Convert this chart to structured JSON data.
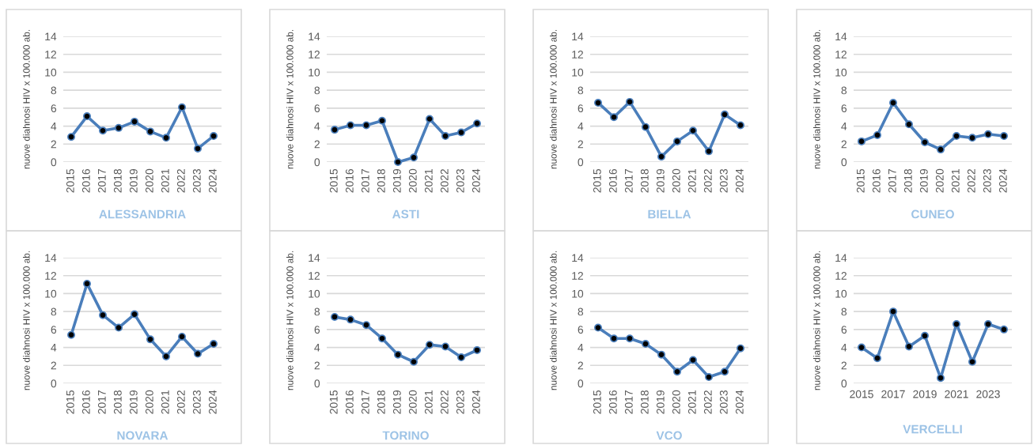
{
  "chart_data": [
    {
      "type": "line",
      "title": "ALESSANDRIA",
      "ylabel": "nuove diahnosi HIV x 100.000 ab.",
      "categories": [
        "2015",
        "2016",
        "2017",
        "2018",
        "2019",
        "2020",
        "2021",
        "2022",
        "2023",
        "2024"
      ],
      "series": [
        {
          "color": "#4a7ebb",
          "values": [
            2.8,
            5.1,
            3.5,
            3.8,
            4.5,
            3.4,
            2.7,
            6.1,
            1.5,
            2.9
          ]
        }
      ],
      "ylim": [
        0,
        14
      ],
      "yticks": [
        0,
        2,
        4,
        6,
        8,
        10,
        12,
        14
      ],
      "grid": "y",
      "marker": "circle",
      "legend": false
    },
    {
      "type": "line",
      "title": "ASTI",
      "ylabel": "nuove diahnosi HIV x 100.000 ab.",
      "categories": [
        "2015",
        "2016",
        "2017",
        "2018",
        "2019",
        "2020",
        "2021",
        "2022",
        "2023",
        "2024"
      ],
      "series": [
        {
          "color": "#4a7ebb",
          "values": [
            3.6,
            4.1,
            4.1,
            4.6,
            0.0,
            0.5,
            4.8,
            2.9,
            3.3,
            4.3
          ]
        }
      ],
      "ylim": [
        0,
        14
      ],
      "yticks": [
        0,
        2,
        4,
        6,
        8,
        10,
        12,
        14
      ],
      "grid": "y",
      "marker": "circle",
      "legend": false
    },
    {
      "type": "line",
      "title": "BIELLA",
      "ylabel": "nuove diahnosi HIV x 100.000 ab.",
      "categories": [
        "2015",
        "2016",
        "2017",
        "2018",
        "2019",
        "2020",
        "2021",
        "2022",
        "2023",
        "2024"
      ],
      "series": [
        {
          "color": "#4a7ebb",
          "values": [
            6.6,
            5.0,
            6.7,
            3.9,
            0.6,
            2.3,
            3.5,
            1.2,
            5.3,
            4.1
          ]
        }
      ],
      "ylim": [
        0,
        14
      ],
      "yticks": [
        0,
        2,
        4,
        6,
        8,
        10,
        12,
        14
      ],
      "grid": "y",
      "marker": "circle",
      "legend": false
    },
    {
      "type": "line",
      "title": "CUNEO",
      "ylabel": "nuove diahnosi HIV x 100.000 ab.",
      "categories": [
        "2015",
        "2016",
        "2017",
        "2018",
        "2019",
        "2020",
        "2021",
        "2022",
        "2023",
        "2024"
      ],
      "series": [
        {
          "color": "#4a7ebb",
          "values": [
            2.3,
            3.0,
            6.6,
            4.2,
            2.2,
            1.4,
            2.9,
            2.7,
            3.1,
            2.9
          ]
        }
      ],
      "ylim": [
        0,
        14
      ],
      "yticks": [
        0,
        2,
        4,
        6,
        8,
        10,
        12,
        14
      ],
      "grid": "y",
      "marker": "circle",
      "legend": false
    },
    {
      "type": "line",
      "title": "NOVARA",
      "ylabel": "nuove diahnosi HIV x 100.000 ab.",
      "categories": [
        "2015",
        "2016",
        "2017",
        "2018",
        "2019",
        "2020",
        "2021",
        "2022",
        "2023",
        "2024"
      ],
      "series": [
        {
          "color": "#4a7ebb",
          "values": [
            5.4,
            11.1,
            7.6,
            6.2,
            7.7,
            4.9,
            3.0,
            5.2,
            3.3,
            4.4
          ]
        }
      ],
      "ylim": [
        0,
        14
      ],
      "yticks": [
        0,
        2,
        4,
        6,
        8,
        10,
        12,
        14
      ],
      "grid": "y",
      "marker": "circle",
      "legend": false
    },
    {
      "type": "line",
      "title": "TORINO",
      "ylabel": "nuove diahnosi HIV x 100.000 ab.",
      "categories": [
        "2015",
        "2016",
        "2017",
        "2018",
        "2019",
        "2020",
        "2021",
        "2022",
        "2023",
        "2024"
      ],
      "series": [
        {
          "color": "#4a7ebb",
          "values": [
            7.4,
            7.1,
            6.5,
            5.0,
            3.2,
            2.4,
            4.3,
            4.1,
            2.9,
            3.7
          ]
        }
      ],
      "ylim": [
        0,
        14
      ],
      "yticks": [
        0,
        2,
        4,
        6,
        8,
        10,
        12,
        14
      ],
      "grid": "y",
      "marker": "circle",
      "legend": false
    },
    {
      "type": "line",
      "title": "VCO",
      "ylabel": "nuove diahnosi HIV x 100.000 ab.",
      "categories": [
        "2015",
        "2016",
        "2017",
        "2018",
        "2019",
        "2020",
        "2021",
        "2022",
        "2023",
        "2024"
      ],
      "series": [
        {
          "color": "#4a7ebb",
          "values": [
            6.2,
            5.0,
            5.0,
            4.4,
            3.2,
            1.3,
            2.6,
            0.7,
            1.3,
            3.9
          ]
        }
      ],
      "ylim": [
        0,
        14
      ],
      "yticks": [
        0,
        2,
        4,
        6,
        8,
        10,
        12,
        14
      ],
      "grid": "y",
      "marker": "circle",
      "legend": false
    },
    {
      "type": "line",
      "title": "VERCELLI",
      "ylabel": "nuove diahnosi HIV x 100.000 ab.",
      "categories": [
        "2015",
        null,
        "2017",
        null,
        "2019",
        null,
        "2021",
        null,
        "2023",
        null
      ],
      "series": [
        {
          "color": "#4a7ebb",
          "values": [
            4.0,
            2.8,
            8.0,
            4.1,
            5.3,
            0.6,
            6.6,
            2.4,
            6.6,
            6.0
          ]
        }
      ],
      "ylim": [
        0,
        14
      ],
      "yticks": [
        0,
        2,
        4,
        6,
        8,
        10,
        12,
        14
      ],
      "grid": "y",
      "marker": "circle",
      "legend": false
    }
  ]
}
